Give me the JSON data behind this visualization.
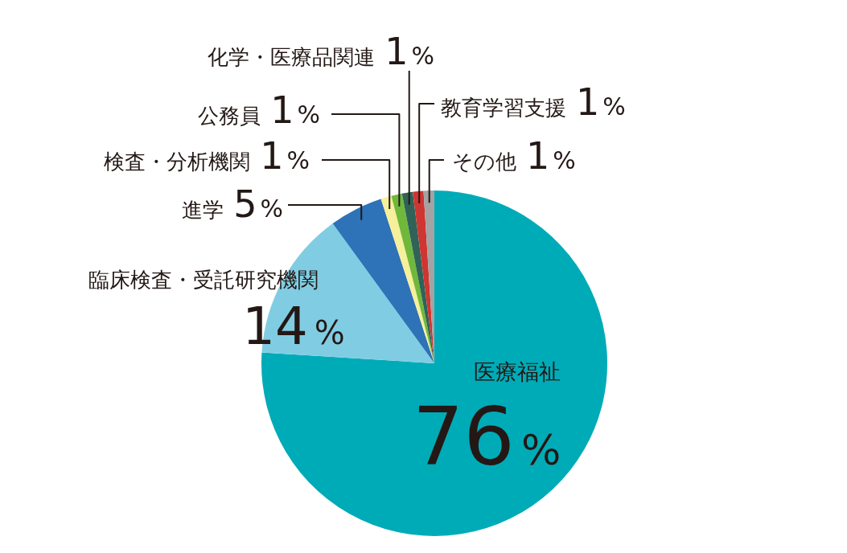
{
  "chart_data": {
    "type": "pie",
    "categories": [
      "医療福祉",
      "臨床検査・受託研究機関",
      "進学",
      "検査・分析機関",
      "公務員",
      "化学・医療品関連",
      "教育学習支援",
      "その他"
    ],
    "values": [
      76,
      14,
      5,
      1,
      1,
      1,
      1,
      1
    ],
    "colors": [
      "#00abb8",
      "#80cde3",
      "#2e72b8",
      "#f6f09a",
      "#6fb83c",
      "#2f6357",
      "#cf3531",
      "#a3a3a3"
    ],
    "value_labels": [
      "76%",
      "14%",
      "5%",
      "1%",
      "1%",
      "1%",
      "1%",
      "1%"
    ],
    "legend": false
  }
}
